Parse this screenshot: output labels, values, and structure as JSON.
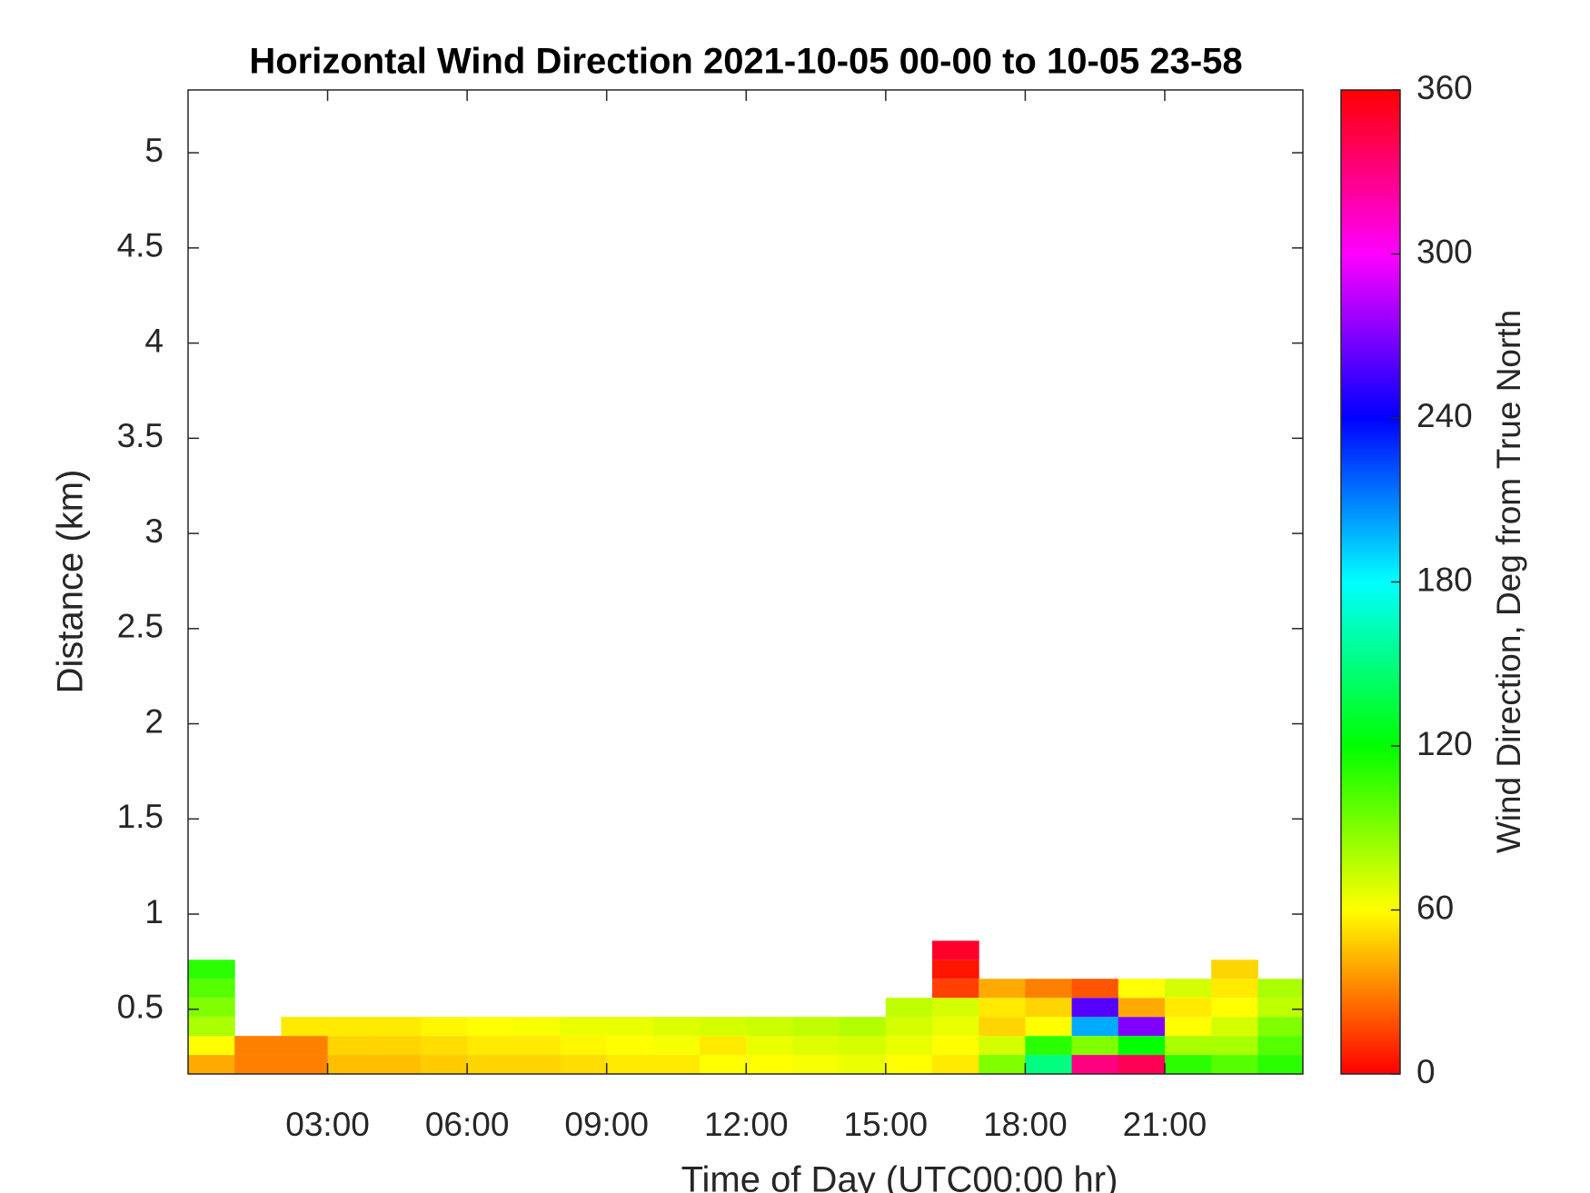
{
  "chart_data": {
    "type": "heatmap",
    "title": "Horizontal Wind Direction 2021-10-05 00-00 to 10-05 23-58",
    "xlabel": "Time of Day (UTC00:00 hr)",
    "ylabel": "Distance (km)",
    "colorbar_label": "Wind Direction, Deg from True North",
    "colormap": "hsv",
    "xlim": [
      0,
      23.97
    ],
    "ylim": [
      0.16,
      5.33
    ],
    "zlim": [
      0,
      360
    ],
    "xticks": [
      {
        "value": 3,
        "label": "03:00"
      },
      {
        "value": 6,
        "label": "06:00"
      },
      {
        "value": 9,
        "label": "09:00"
      },
      {
        "value": 12,
        "label": "12:00"
      },
      {
        "value": 15,
        "label": "15:00"
      },
      {
        "value": 18,
        "label": "18:00"
      },
      {
        "value": 21,
        "label": "21:00"
      }
    ],
    "yticks": [
      0.5,
      1,
      1.5,
      2,
      2.5,
      3,
      3.5,
      4,
      4.5,
      5
    ],
    "zticks": [
      0,
      60,
      120,
      180,
      240,
      300,
      360
    ],
    "x_bins": [
      0,
      1,
      2,
      3,
      4,
      5,
      6,
      7,
      8,
      9,
      10,
      11,
      12,
      13,
      14,
      15,
      16,
      17,
      18,
      19,
      20,
      21,
      22,
      23,
      23.97
    ],
    "y_bins": [
      0.16,
      0.26,
      0.36,
      0.46,
      0.56,
      0.66,
      0.76,
      0.86
    ],
    "values": [
      [
        40,
        30,
        30,
        45,
        45,
        48,
        50,
        50,
        52,
        55,
        55,
        60,
        60,
        62,
        65,
        60,
        55,
        90,
        150,
        330,
        340,
        110,
        100,
        110
      ],
      [
        60,
        30,
        30,
        50,
        50,
        52,
        55,
        55,
        58,
        60,
        62,
        55,
        65,
        68,
        70,
        65,
        60,
        70,
        110,
        90,
        120,
        80,
        80,
        100
      ],
      [
        80,
        null,
        55,
        55,
        55,
        58,
        60,
        62,
        65,
        65,
        68,
        70,
        72,
        75,
        78,
        70,
        65,
        50,
        60,
        200,
        270,
        60,
        70,
        90
      ],
      [
        90,
        null,
        null,
        null,
        null,
        null,
        null,
        null,
        null,
        null,
        null,
        null,
        null,
        null,
        null,
        75,
        70,
        55,
        50,
        260,
        40,
        55,
        60,
        75
      ],
      [
        100,
        null,
        null,
        null,
        null,
        null,
        null,
        null,
        null,
        null,
        null,
        null,
        null,
        null,
        null,
        null,
        15,
        40,
        30,
        20,
        60,
        70,
        55,
        80
      ],
      [
        110,
        null,
        null,
        null,
        null,
        null,
        null,
        null,
        null,
        null,
        null,
        null,
        null,
        null,
        null,
        null,
        5,
        null,
        null,
        null,
        null,
        null,
        50,
        null
      ],
      [
        null,
        null,
        null,
        null,
        null,
        null,
        null,
        null,
        null,
        null,
        null,
        null,
        null,
        null,
        null,
        null,
        350,
        null,
        null,
        null,
        null,
        null,
        null,
        null
      ]
    ]
  }
}
